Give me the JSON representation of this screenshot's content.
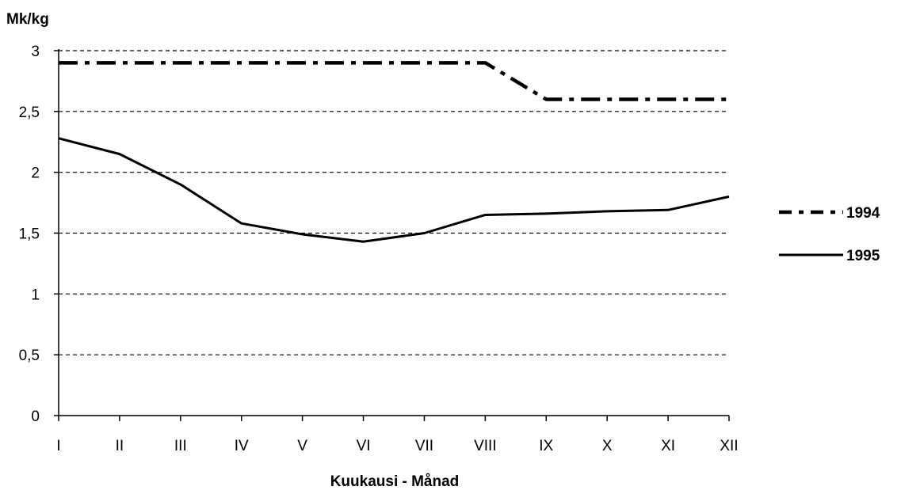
{
  "chart_data": {
    "type": "line",
    "ylabel": "Mk/kg",
    "xlabel": "Kuukausi - Månad",
    "categories": [
      "I",
      "II",
      "III",
      "IV",
      "V",
      "VI",
      "VII",
      "VIII",
      "IX",
      "X",
      "XI",
      "XII"
    ],
    "ylim": [
      0,
      3
    ],
    "yticks": [
      0,
      0.5,
      1,
      1.5,
      2,
      2.5,
      3
    ],
    "ytick_labels": [
      "0",
      "0,5",
      "1",
      "1,5",
      "2",
      "2,5",
      "3"
    ],
    "grid": true,
    "legend_position": "right",
    "series": [
      {
        "name": "1994",
        "style": "dash-dot",
        "color": "#000000",
        "values": [
          2.9,
          2.9,
          2.9,
          2.9,
          2.9,
          2.9,
          2.9,
          2.9,
          2.6,
          2.6,
          2.6,
          2.6
        ]
      },
      {
        "name": "1995",
        "style": "solid",
        "color": "#000000",
        "values": [
          2.28,
          2.15,
          1.9,
          1.58,
          1.49,
          1.43,
          1.5,
          1.65,
          1.66,
          1.68,
          1.69,
          1.8
        ]
      }
    ]
  }
}
